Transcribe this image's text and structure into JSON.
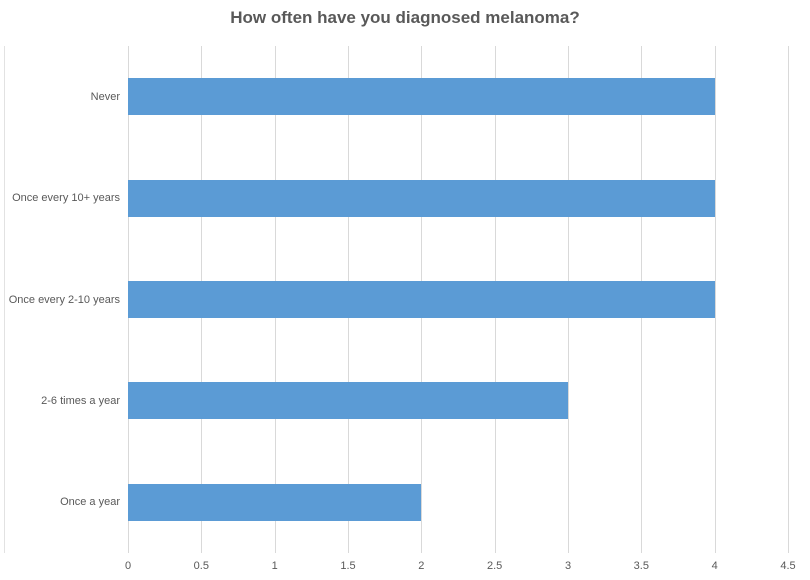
{
  "chart_data": {
    "type": "bar",
    "orientation": "horizontal",
    "title": "How often have you diagnosed melanoma?",
    "categories": [
      "Never",
      "Once every 10+ years",
      "Once every 2-10 years",
      "2-6 times a year",
      "Once a year"
    ],
    "values": [
      4,
      4,
      4,
      3,
      2
    ],
    "xlabel": "",
    "ylabel": "",
    "xlim": [
      0,
      4.5
    ],
    "x_ticks": [
      "0",
      "0.5",
      "1",
      "1.5",
      "2",
      "2.5",
      "3",
      "3.5",
      "4",
      "4.5"
    ],
    "grid": "vertical-gridlines",
    "legend": "none",
    "colors": {
      "bar": "#5B9BD5",
      "gridline": "#D9D9D9",
      "title_text": "#595959",
      "axis_text": "#595959",
      "background": "#FFFFFF"
    }
  }
}
